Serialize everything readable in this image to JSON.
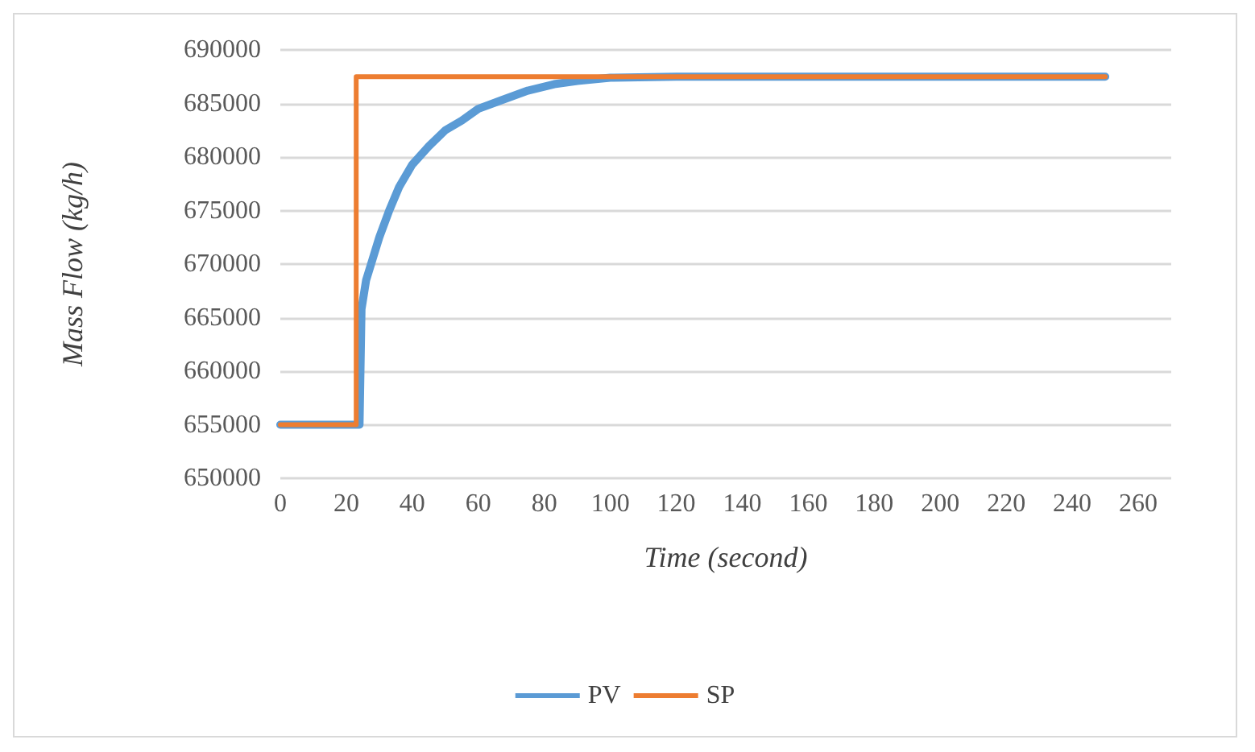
{
  "chart_data": {
    "type": "line",
    "xlabel": "Time (second)",
    "ylabel": "Mass Flow (kg/h)",
    "xlim": [
      0,
      270
    ],
    "xticks": [
      0,
      20,
      40,
      60,
      80,
      100,
      120,
      140,
      160,
      180,
      200,
      220,
      240,
      260
    ],
    "ylim": [
      650000,
      690000
    ],
    "yticks": [
      650000,
      655000,
      660000,
      665000,
      670000,
      675000,
      680000,
      685000,
      690000
    ],
    "grid": "y",
    "legend": "bottom",
    "marker": "none",
    "line_style": "solid",
    "series": [
      {
        "name": "PV",
        "color": "#5b9bd5",
        "x": [
          0,
          24,
          24.6,
          26,
          28,
          30,
          33,
          36,
          40,
          45,
          50,
          55,
          60,
          67,
          75,
          83,
          90,
          100,
          120,
          140,
          250
        ],
        "values": [
          655000,
          655000,
          665800,
          668500,
          670500,
          672500,
          675000,
          677200,
          679300,
          681000,
          682500,
          683400,
          684500,
          685300,
          686200,
          686800,
          687100,
          687400,
          687500,
          687500,
          687500
        ]
      },
      {
        "name": "SP",
        "color": "#ed7d31",
        "x": [
          0,
          23,
          23,
          250
        ],
        "values": [
          655000,
          655000,
          687500,
          687500
        ]
      }
    ]
  }
}
